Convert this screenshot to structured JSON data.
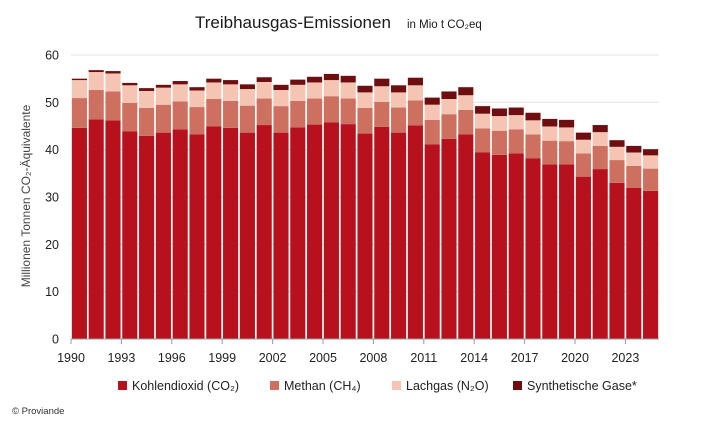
{
  "title": "Treibhausgas-Emissionen",
  "title_unit": "in Mio t CO₂eq",
  "credit": "© Proviande",
  "colors": {
    "Kohlendioxid": "#b8111e",
    "Methan": "#cd7060",
    "Lachgas": "#f5c4b2",
    "Synthetische": "#6e0e10",
    "grid": "#e3e3e3"
  },
  "chart_data": {
    "type": "bar",
    "stacked": true,
    "title": "Treibhausgas-Emissionen",
    "ylabel": "Millionen Tonnen CO₂-Äquivalente",
    "ylim": [
      0,
      60
    ],
    "yticks": [
      0,
      10,
      20,
      30,
      40,
      50,
      60
    ],
    "xticks": [
      1990,
      1993,
      1996,
      1999,
      2002,
      2005,
      2008,
      2011,
      2014,
      2017,
      2020,
      2023
    ],
    "grid": true,
    "legend": "bottom",
    "categories": [
      1990,
      1991,
      1992,
      1993,
      1994,
      1995,
      1996,
      1997,
      1998,
      1999,
      2000,
      2001,
      2002,
      2003,
      2004,
      2005,
      2006,
      2007,
      2008,
      2009,
      2010,
      2011,
      2012,
      2013,
      2014,
      2015,
      2016,
      2017,
      2018,
      2019,
      2020,
      2021,
      2022,
      2023,
      2024
    ],
    "series": [
      {
        "name": "Kohlendioxid (CO₂)",
        "color_key": "Kohlendioxid",
        "values": [
          44.6,
          46.4,
          46.2,
          43.9,
          42.9,
          43.6,
          44.3,
          43.2,
          44.9,
          44.6,
          43.6,
          45.2,
          43.6,
          44.7,
          45.3,
          45.8,
          45.4,
          43.4,
          44.8,
          43.6,
          45.1,
          41.1,
          42.3,
          43.2,
          39.4,
          38.9,
          39.2,
          38.2,
          36.9,
          36.9,
          34.3,
          35.9,
          33.0,
          31.9,
          31.3
        ]
      },
      {
        "name": "Methan (CH₄)",
        "color_key": "Methan",
        "values": [
          6.3,
          6.2,
          6.1,
          6.0,
          5.9,
          5.9,
          5.9,
          5.8,
          5.8,
          5.7,
          5.7,
          5.6,
          5.6,
          5.6,
          5.5,
          5.5,
          5.4,
          5.4,
          5.3,
          5.3,
          5.3,
          5.2,
          5.2,
          5.2,
          5.1,
          5.1,
          5.1,
          5.0,
          5.0,
          4.9,
          4.9,
          4.9,
          4.8,
          4.7,
          4.7
        ]
      },
      {
        "name": "Lachgas (N₂O)",
        "color_key": "Lachgas",
        "values": [
          3.8,
          3.8,
          3.8,
          3.7,
          3.6,
          3.6,
          3.6,
          3.5,
          3.5,
          3.5,
          3.5,
          3.5,
          3.4,
          3.4,
          3.4,
          3.4,
          3.4,
          3.3,
          3.3,
          3.2,
          3.2,
          3.2,
          3.2,
          3.1,
          3.1,
          3.1,
          3.0,
          3.0,
          3.0,
          2.9,
          2.9,
          2.9,
          2.8,
          2.8,
          2.8
        ]
      },
      {
        "name": "Synthetische Gase*",
        "color_key": "Synthetische",
        "values": [
          0.3,
          0.4,
          0.5,
          0.5,
          0.6,
          0.6,
          0.7,
          0.7,
          0.8,
          0.9,
          1.0,
          1.0,
          1.1,
          1.1,
          1.2,
          1.3,
          1.4,
          1.4,
          1.6,
          1.5,
          1.6,
          1.5,
          1.6,
          1.7,
          1.6,
          1.6,
          1.6,
          1.6,
          1.6,
          1.6,
          1.5,
          1.5,
          1.4,
          1.4,
          1.3
        ]
      }
    ]
  }
}
